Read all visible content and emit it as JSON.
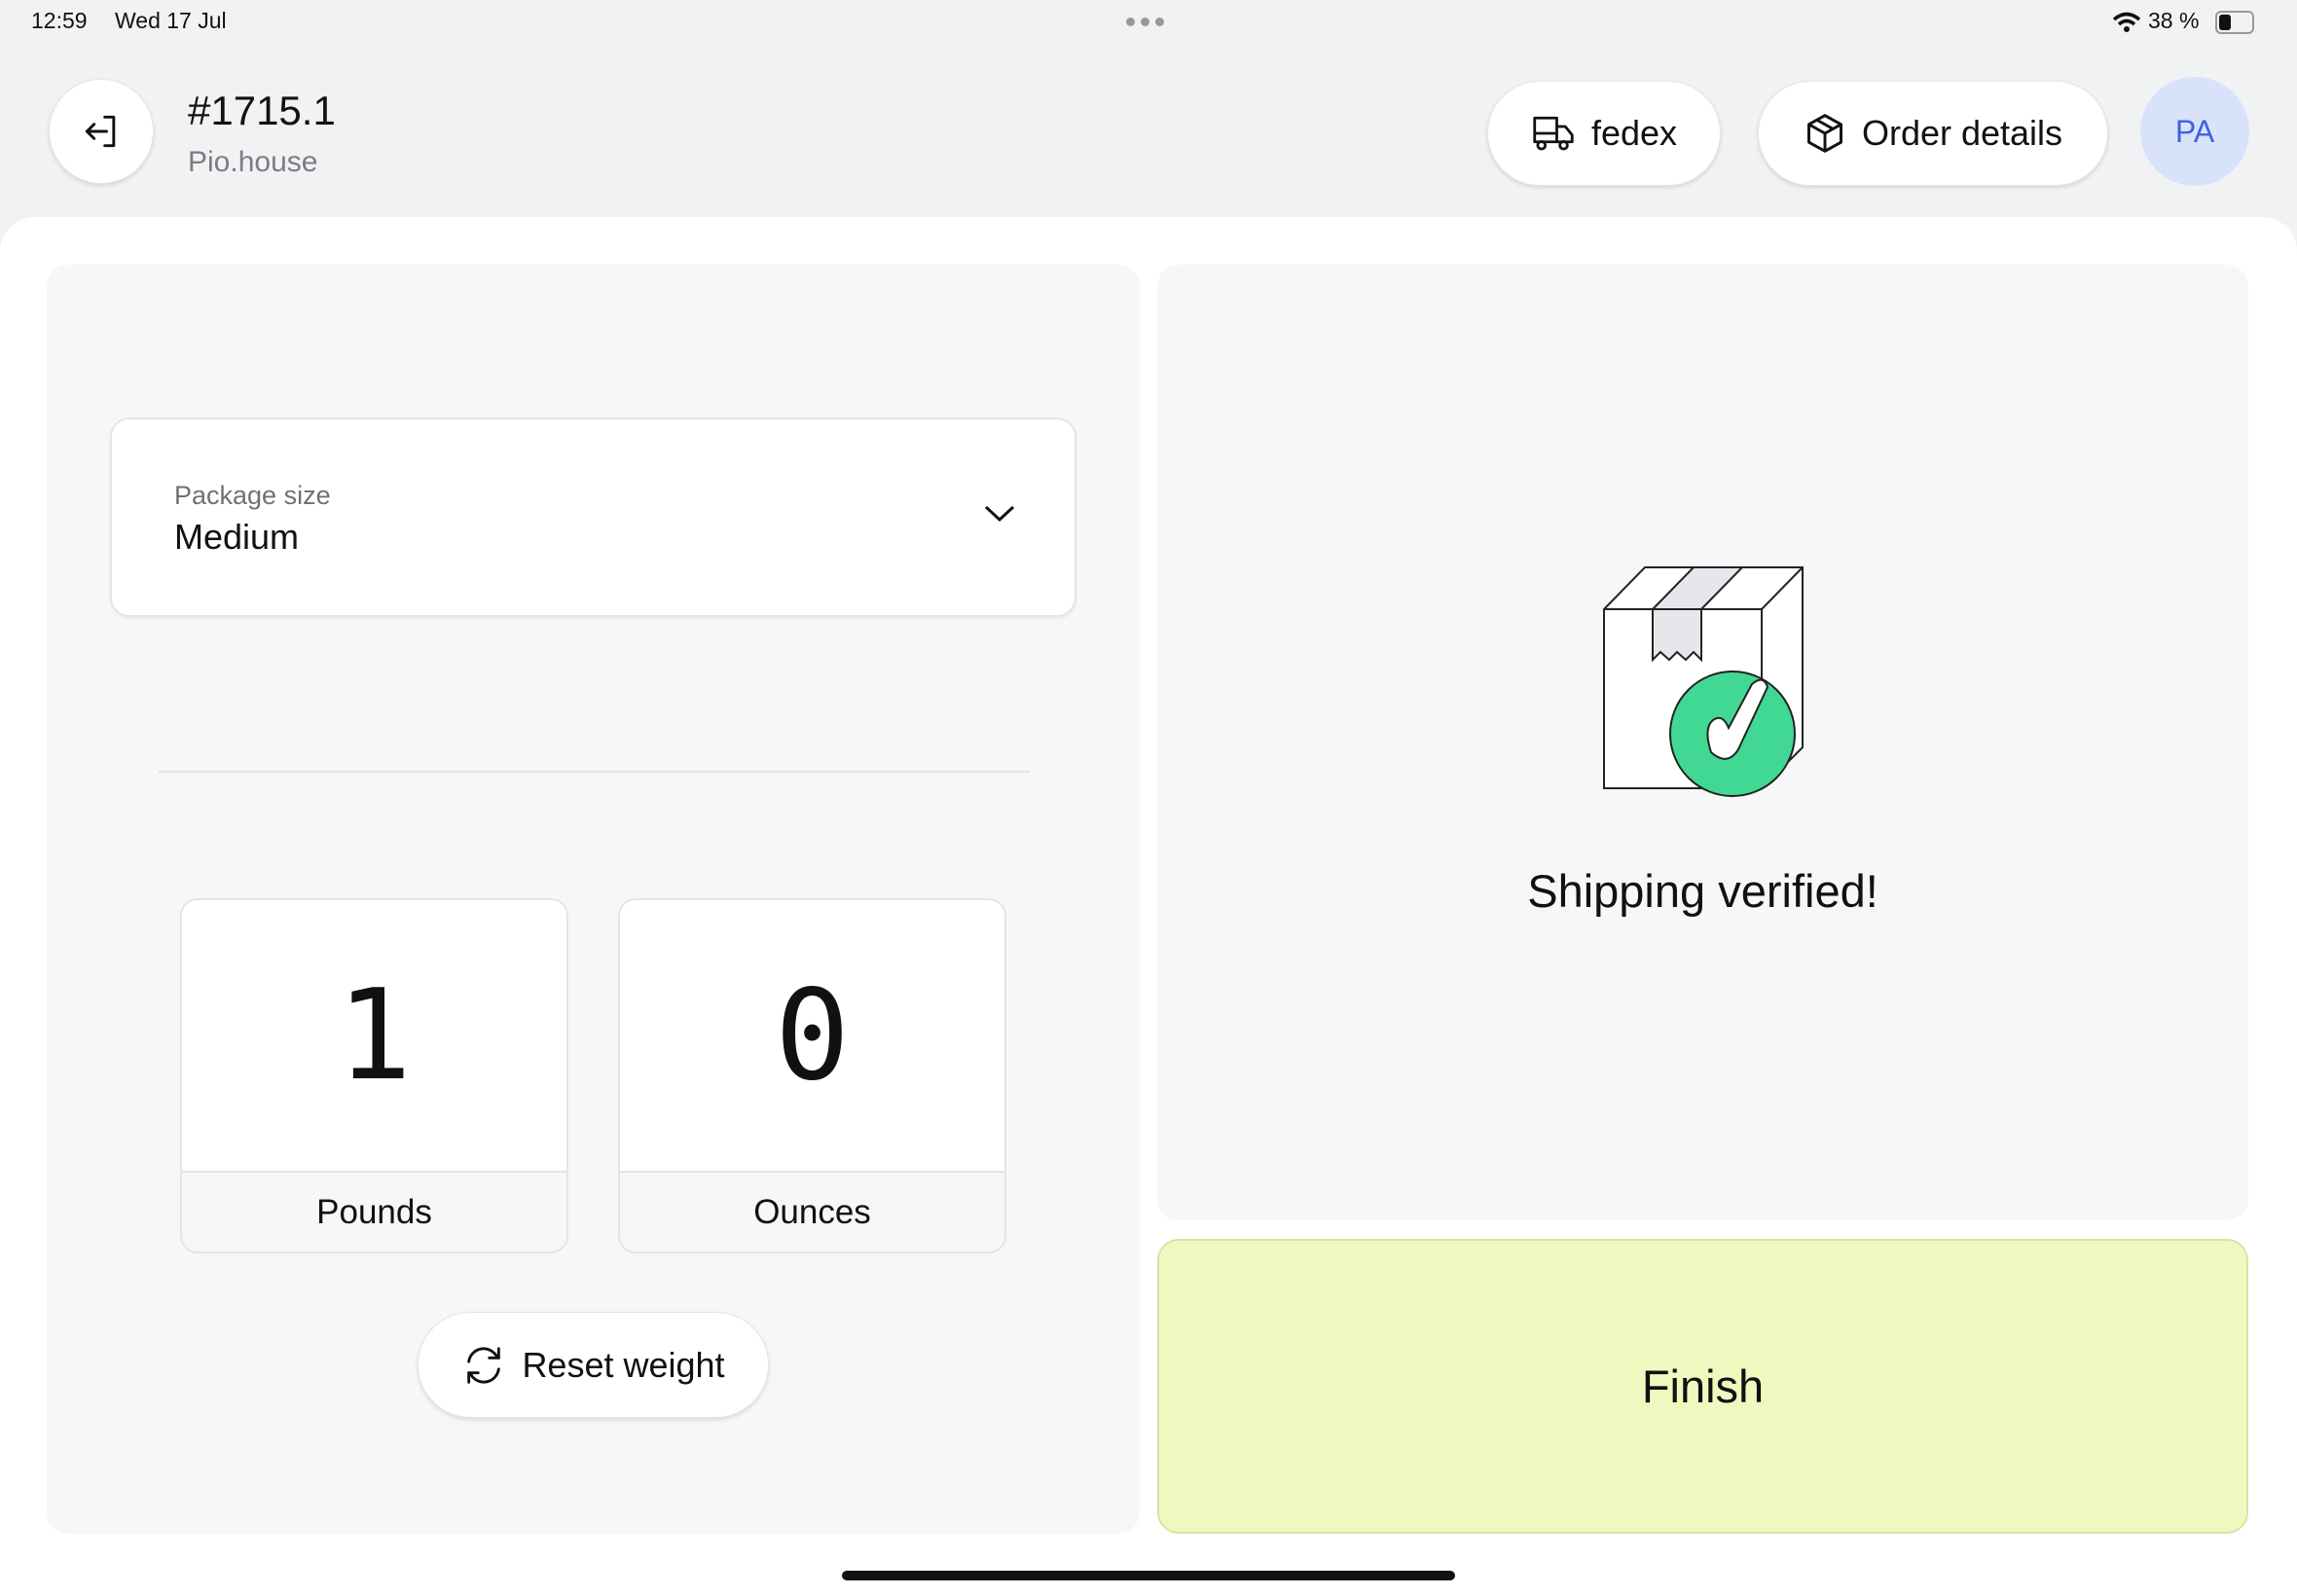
{
  "status_bar": {
    "time": "12:59",
    "date": "Wed 17 Jul",
    "battery": "38 %",
    "battery_level": 0.38
  },
  "header": {
    "order_number": "#1715.1",
    "store": "Pio.house",
    "carrier_label": "fedex",
    "order_details_label": "Order details",
    "avatar_initials": "PA"
  },
  "package": {
    "label": "Package size",
    "value": "Medium"
  },
  "weight": {
    "pounds": "1",
    "pounds_label": "Pounds",
    "ounces": "0",
    "ounces_label": "Ounces",
    "reset_label": "Reset weight"
  },
  "verification": {
    "message": "Shipping verified!"
  },
  "finish_label": "Finish",
  "colors": {
    "accent_green": "#41d893",
    "finish_bg": "#f0f8c0",
    "avatar_bg": "#d8e2fb",
    "avatar_text": "#3d63e0"
  }
}
